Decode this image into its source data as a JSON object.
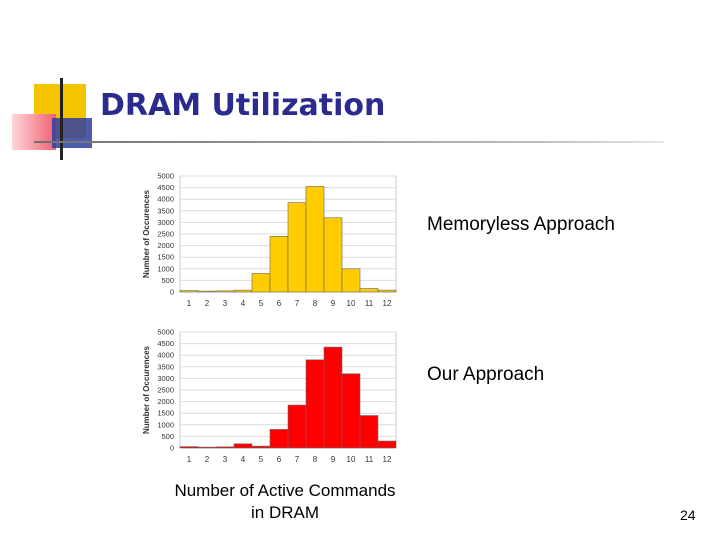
{
  "slide": {
    "title": "DRAM Utilization",
    "page_number": "24",
    "x_caption_line1": "Number of Active Commands",
    "x_caption_line2": "in DRAM",
    "colors": {
      "title": "#2b2b8f",
      "deco_yellow": "#f5c400",
      "deco_red": "#f06070",
      "deco_blue": "#2f3fa0"
    }
  },
  "chart_data": [
    {
      "type": "bar",
      "caption": "Memoryless Approach",
      "categories": [
        "1",
        "2",
        "3",
        "4",
        "5",
        "6",
        "7",
        "8",
        "9",
        "10",
        "11",
        "12"
      ],
      "values": [
        60,
        40,
        50,
        80,
        800,
        2400,
        3850,
        4550,
        3200,
        1000,
        150,
        80
      ],
      "ylabel": "Number of Occurences",
      "ylim": [
        0,
        5000
      ],
      "yticks": [
        "0",
        "500",
        "1000",
        "1500",
        "2000",
        "2500",
        "3000",
        "3500",
        "4000",
        "4500",
        "5000"
      ],
      "grid": true,
      "color": "#ffcc00"
    },
    {
      "type": "bar",
      "caption": "Our Approach",
      "categories": [
        "1",
        "2",
        "3",
        "4",
        "5",
        "6",
        "7",
        "8",
        "9",
        "10",
        "11",
        "12"
      ],
      "values": [
        60,
        40,
        50,
        180,
        80,
        800,
        1850,
        3800,
        4350,
        3200,
        1400,
        300
      ],
      "ylabel": "Number of Occurences",
      "ylim": [
        0,
        5000
      ],
      "yticks": [
        "0",
        "500",
        "1000",
        "1500",
        "2000",
        "2500",
        "3000",
        "3500",
        "4000",
        "4500",
        "5000"
      ],
      "grid": true,
      "color": "#ff0000"
    }
  ]
}
